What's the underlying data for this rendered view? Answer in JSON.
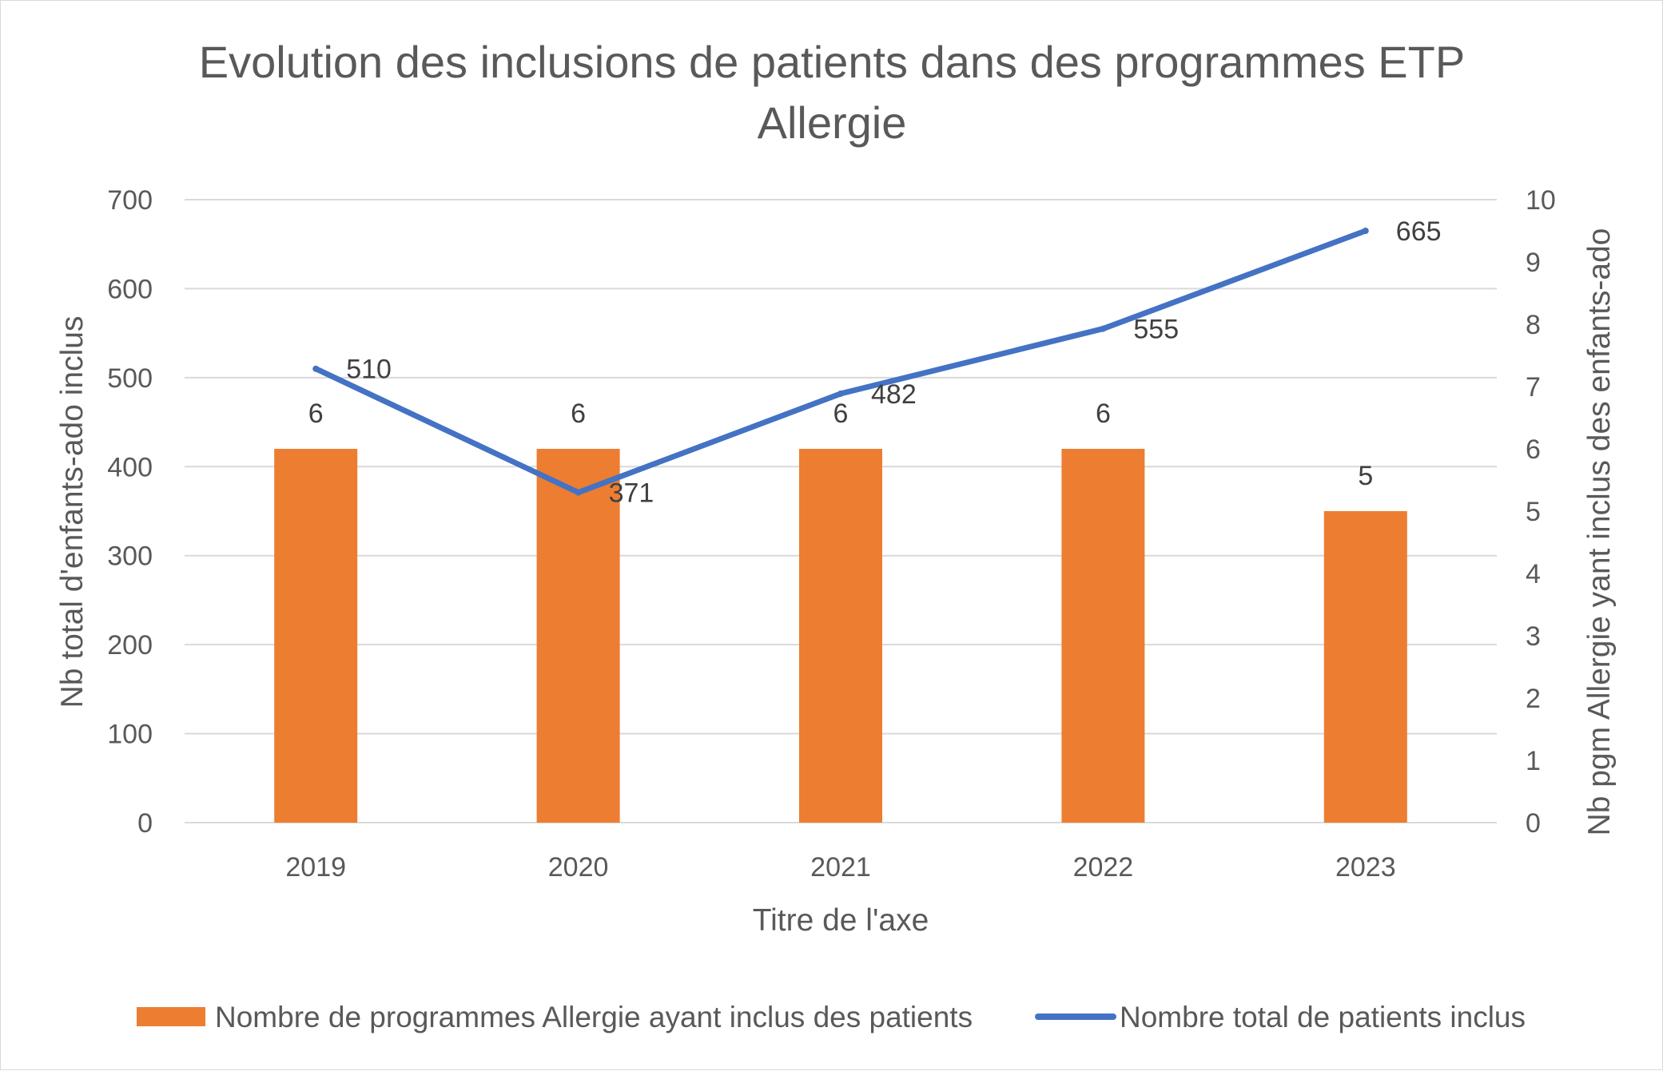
{
  "chart_data": {
    "type": "bar",
    "title": [
      "Evolution des inclusions de patients dans des programmes ETP",
      "Allergie"
    ],
    "categories": [
      "2019",
      "2020",
      "2021",
      "2022",
      "2023"
    ],
    "xlabel": "Titre de l'axe",
    "ylabel_left": "Nb total d'enfants-ado inclus",
    "ylabel_right": "Nb pgm Allergie yant inclus des enfants-ado",
    "ylim_left": [
      0,
      700
    ],
    "yticks_left": [
      "0",
      "100",
      "200",
      "300",
      "400",
      "500",
      "600",
      "700"
    ],
    "ylim_right": [
      0,
      10
    ],
    "yticks_right": [
      "0",
      "1",
      "2",
      "3",
      "4",
      "5",
      "6",
      "7",
      "8",
      "9",
      "10"
    ],
    "grid": true,
    "legend_position": "bottom",
    "series": [
      {
        "name": "Nombre de programmes Allergie ayant inclus des patients",
        "type": "bar",
        "axis": "right",
        "color": "#ed7d31",
        "values": [
          6,
          6,
          6,
          6,
          5
        ],
        "labels": [
          "6",
          "6",
          "6",
          "6",
          "5"
        ]
      },
      {
        "name": "Nombre total de patients inclus",
        "type": "line",
        "axis": "left",
        "color": "#4472c4",
        "values": [
          510,
          371,
          482,
          555,
          665
        ],
        "labels": [
          "510",
          "371",
          "482",
          "555",
          "665"
        ]
      }
    ]
  }
}
